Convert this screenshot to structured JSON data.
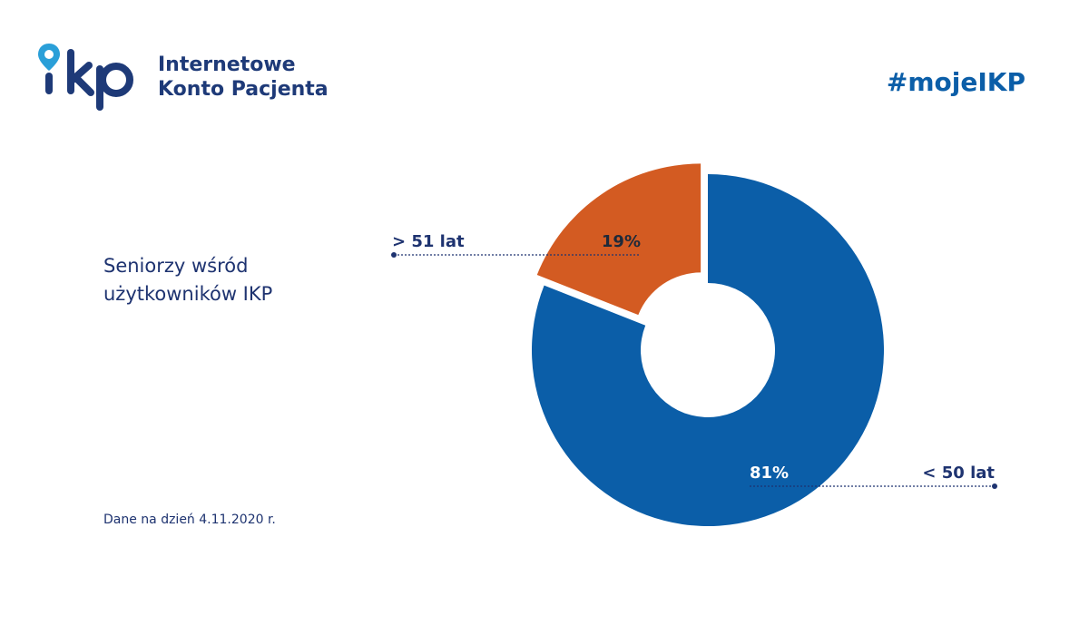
{
  "header": {
    "logo_line1": "Internetowe",
    "logo_line2": "Konto Pacjenta",
    "hashtag": "#mojeIKP"
  },
  "chart_data": {
    "type": "pie",
    "style": "donut",
    "title_line1": "Seniorzy wśród",
    "title_line2": "użytkowników IKP",
    "slices": [
      {
        "category": "< 50 lat",
        "value": 81,
        "label": "81%",
        "color": "#0b5ea8",
        "label_color": "#ffffff"
      },
      {
        "category": "> 51 lat",
        "value": 19,
        "label": "19%",
        "color": "#d35b22",
        "label_color": "#1e2a3a",
        "exploded": true
      }
    ],
    "legend_placement": "callouts"
  },
  "footnote": "Dane na dzień 4.11.2020 r.",
  "colors": {
    "brand_blue": "#0b5ea8",
    "navy": "#1e3370",
    "accent_orange": "#d35b22"
  }
}
